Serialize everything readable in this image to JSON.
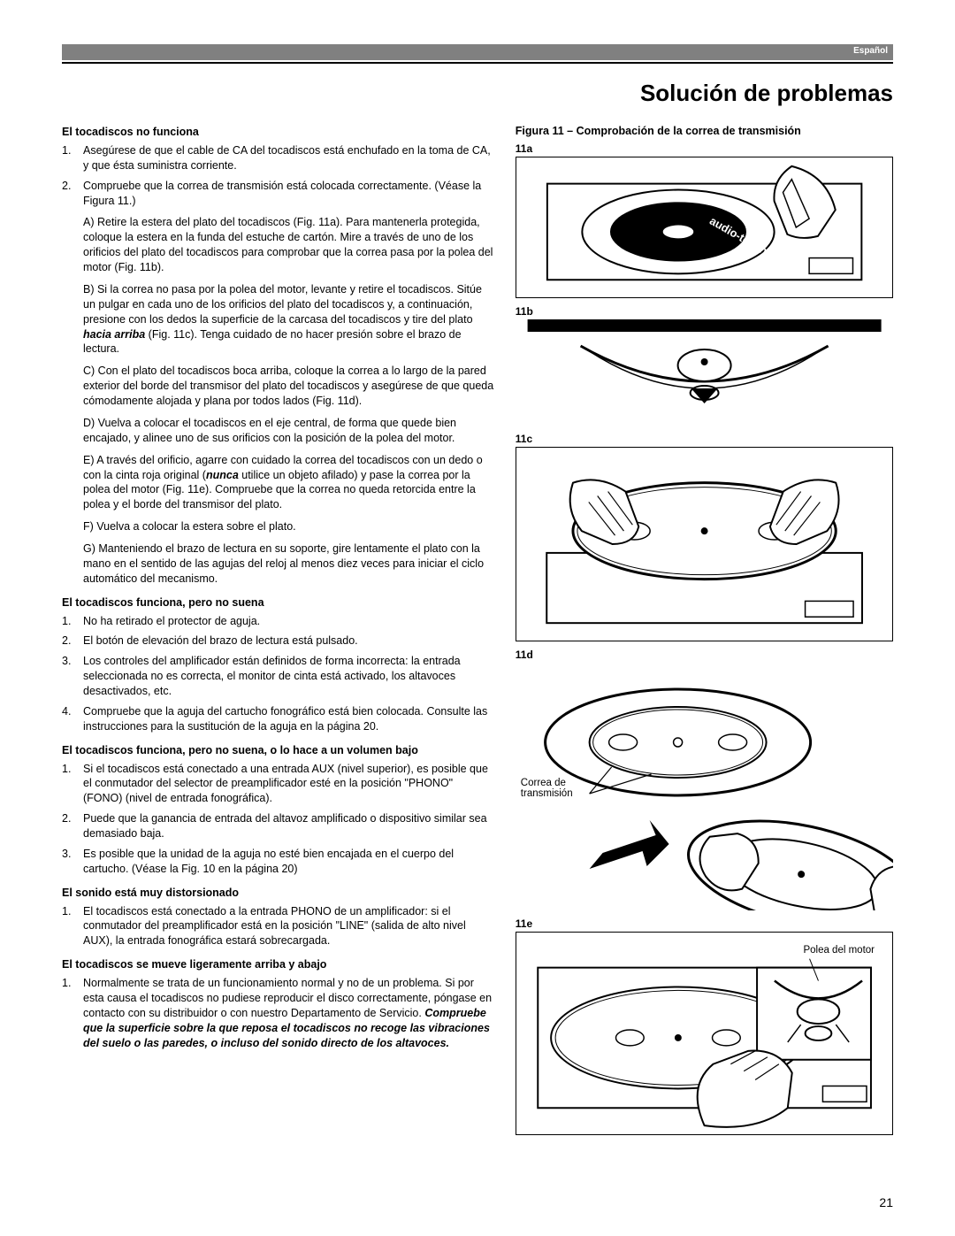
{
  "lang_tag": "Español",
  "page_title": "Solución de problemas",
  "page_number": "21",
  "sections": [
    {
      "head": "El tocadiscos no funciona",
      "items": [
        {
          "num": "1.",
          "body": "Asegúrese de que el cable de CA del tocadiscos está enchufado en la toma de CA, y que ésta suministra corriente."
        },
        {
          "num": "2.",
          "body": "Compruebe que la correa de transmisión está colocada correctamente. (Véase la Figura 11.)"
        }
      ],
      "subs": [
        "A) Retire la estera del plato del tocadiscos (Fig. 11a). Para mantenerla protegida, coloque la estera en la funda del estuche de cartón. Mire a través de uno de los orificios del plato del tocadiscos para comprobar que la correa pasa por la polea del motor (Fig. 11b).",
        "B) Si la correa no pasa por la polea del motor, levante y retire el tocadiscos. Sitúe un pulgar en cada uno de los orificios del plato del tocadiscos y, a continuación, presione con los dedos la superficie de la carcasa del tocadiscos y tire del plato <span class='bi'>hacia arriba</span> (Fig. 11c). Tenga cuidado de no hacer presión sobre el brazo de lectura.",
        "C) Con el plato del tocadiscos boca arriba, coloque la correa a lo largo de la pared exterior del borde del transmisor del plato del tocadiscos y asegúrese de que queda cómodamente alojada y plana por todos lados (Fig. 11d).",
        "D) Vuelva a colocar el tocadiscos en el eje central, de forma que quede bien encajado, y alinee uno de sus orificios con la posición de la polea del motor.",
        "E) A través del orificio, agarre con cuidado la correa del tocadiscos con un dedo o con la cinta roja original (<span class='bi'>nunca</span> utilice un objeto afilado) y pase la correa por la polea del motor (Fig. 11e). Compruebe que la correa no queda retorcida entre la polea y el borde del transmisor del plato.",
        "F) Vuelva a colocar la estera sobre el plato.",
        "G) Manteniendo el brazo de lectura en su soporte, gire lentamente el plato con la mano en el sentido de las agujas del reloj al menos diez veces para iniciar el ciclo automático del mecanismo."
      ]
    },
    {
      "head": "El tocadiscos funciona, pero no suena",
      "items": [
        {
          "num": "1.",
          "body": "No ha retirado el protector de aguja."
        },
        {
          "num": "2.",
          "body": "El botón de elevación del brazo de lectura está pulsado."
        },
        {
          "num": "3.",
          "body": "Los controles del amplificador están definidos de forma incorrecta: la entrada seleccionada no es correcta, el monitor de cinta está activado, los altavoces desactivados, etc."
        },
        {
          "num": "4.",
          "body": "Compruebe que la aguja del cartucho fonográfico está bien colocada. Consulte las instrucciones para la sustitución de la aguja en la página 20."
        }
      ]
    },
    {
      "head": "El tocadiscos funciona, pero no suena, o lo hace a un volumen bajo",
      "items": [
        {
          "num": "1.",
          "body": "Si el tocadiscos está conectado a una entrada AUX (nivel superior), es posible que el conmutador del selector de preamplificador esté en la posición \"PHONO\" (FONO) (nivel de entrada fonográfica)."
        },
        {
          "num": "2.",
          "body": "Puede que la ganancia de entrada del altavoz amplificado o dispositivo similar sea demasiado baja."
        },
        {
          "num": "3.",
          "body": "Es posible que la unidad de la aguja no esté bien encajada en el cuerpo del cartucho. (Véase la Fig. 10 en la página 20)"
        }
      ]
    },
    {
      "head": "El sonido está muy distorsionado",
      "items": [
        {
          "num": "1.",
          "body": "El tocadiscos está conectado a la entrada PHONO de un amplificador: si el conmutador del preamplificador está en la posición \"LINE\" (salida de alto nivel AUX), la entrada fonográfica estará sobrecargada."
        }
      ]
    },
    {
      "head": "El tocadiscos se mueve ligeramente arriba y abajo",
      "items": [
        {
          "num": "1.",
          "body": "Normalmente se trata de un funcionamiento normal y no de un problema. Si por esta causa el tocadiscos no pudiese reproducir el disco correctamente, póngase en contacto con su distribuidor o con nuestro Departamento de Servicio. <span class='bi'>Compruebe que la superficie sobre la que reposa el tocadiscos no recoge las vibraciones del suelo o las paredes, o incluso del sonido directo de los altavoces.</span>"
        }
      ]
    }
  ],
  "figure": {
    "caption": "Figura 11 – Comprobación de la correa de transmisión",
    "labels": {
      "a": "11a",
      "b": "11b",
      "c": "11c",
      "d": "11d",
      "e": "11e"
    },
    "annot_correa": "Correa de\ntransmisión",
    "annot_polea": "Polea del motor"
  }
}
